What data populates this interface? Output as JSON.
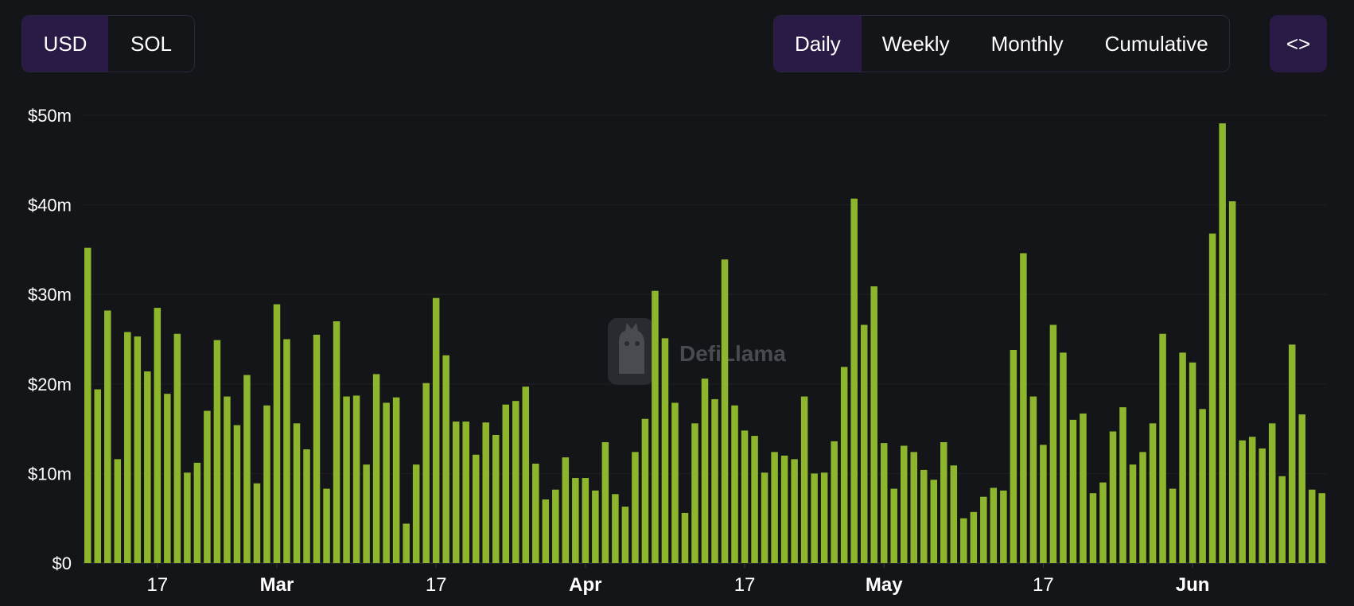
{
  "toolbar": {
    "currency": {
      "options": [
        "USD",
        "SOL"
      ],
      "selected": "USD"
    },
    "period": {
      "options": [
        "Daily",
        "Weekly",
        "Monthly",
        "Cumulative"
      ],
      "selected": "Daily"
    },
    "embed_icon": "code-brackets-icon",
    "embed_label": "<>"
  },
  "watermark": {
    "text": "DefiLlama",
    "icon": "llama-logo-icon"
  },
  "colors": {
    "bar": "#8db62d",
    "background": "#141518",
    "accent": "#2a1a46"
  },
  "chart_data": {
    "type": "bar",
    "title": "",
    "xlabel": "",
    "ylabel": "",
    "ylim": [
      0,
      50
    ],
    "y_unit": "$m",
    "y_ticks": [
      "$0",
      "$10m",
      "$20m",
      "$30m",
      "$40m",
      "$50m"
    ],
    "x_ticks": [
      {
        "label": "17",
        "date": "2025-02-17",
        "month": false
      },
      {
        "label": "Mar",
        "date": "2025-03-01",
        "month": true
      },
      {
        "label": "17",
        "date": "2025-03-17",
        "month": false
      },
      {
        "label": "Apr",
        "date": "2025-04-01",
        "month": true
      },
      {
        "label": "17",
        "date": "2025-04-17",
        "month": false
      },
      {
        "label": "May",
        "date": "2025-05-01",
        "month": true
      },
      {
        "label": "17",
        "date": "2025-05-17",
        "month": false
      },
      {
        "label": "Jun",
        "date": "2025-06-01",
        "month": true
      }
    ],
    "x_start": "2025-02-10",
    "x_end": "2025-06-05",
    "series": [
      {
        "values": [
          35.2,
          19.4,
          28.2,
          11.6,
          25.8,
          25.3,
          21.4,
          28.5,
          18.9,
          25.6,
          10.1,
          11.2,
          17.0,
          24.9,
          18.6,
          15.4,
          21.0,
          8.9,
          17.6,
          28.9,
          25.0,
          15.6,
          12.7,
          25.5,
          8.3,
          27.0,
          18.6,
          18.7,
          11.0,
          21.1,
          17.9,
          18.5,
          4.4,
          11.0,
          20.1,
          29.6,
          23.2,
          15.8,
          15.8,
          12.1,
          15.7,
          14.3,
          17.7,
          18.1,
          19.7,
          11.1,
          7.1,
          8.2,
          11.8,
          9.5,
          9.5,
          8.1,
          13.5,
          7.7,
          6.3,
          12.4,
          16.1,
          30.4,
          25.1,
          17.9,
          5.6,
          15.6,
          20.6,
          18.3,
          33.9,
          17.6,
          14.8,
          14.2,
          10.1,
          12.4,
          12.0,
          11.6,
          18.6,
          10.0,
          10.1,
          13.6,
          21.9,
          40.7,
          26.6,
          30.9,
          13.4,
          8.3,
          13.1,
          12.4,
          10.4,
          9.3,
          13.5,
          10.9,
          5.0,
          5.7,
          7.4,
          8.4,
          8.1,
          23.8,
          34.6,
          18.6,
          13.2,
          26.6,
          23.5,
          16.0,
          16.7,
          7.8,
          9.0,
          14.7,
          17.4,
          11.0,
          12.4,
          15.6,
          25.6,
          8.3,
          23.5,
          22.4,
          17.2,
          36.8,
          49.1,
          40.4,
          13.7,
          14.1,
          12.8,
          15.6,
          9.7,
          24.4,
          16.6,
          8.2,
          7.8
        ]
      }
    ]
  }
}
